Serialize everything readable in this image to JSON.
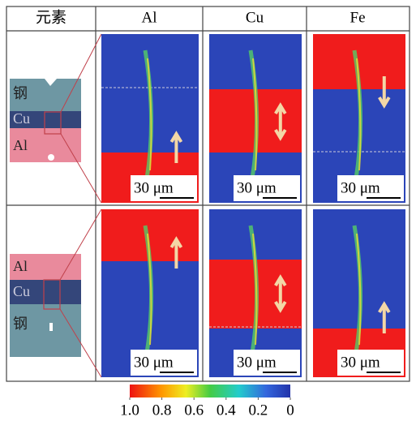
{
  "table": {
    "header": [
      "元素",
      "Al",
      "Cu",
      "Fe"
    ],
    "rows": [
      {
        "schematic_labels": [
          "钢",
          "Cu",
          "Al"
        ],
        "scale_bars": [
          "30 μm",
          "30 μm",
          "30 μm"
        ]
      },
      {
        "schematic_labels": [
          "Al",
          "Cu",
          "钢"
        ],
        "scale_bars": [
          "30 μm",
          "30 μm",
          "30 μm"
        ]
      }
    ]
  },
  "colorbar": {
    "lim": [
      1,
      0
    ],
    "ticks": [
      {
        "value": 1,
        "label": "1.0"
      },
      {
        "value": 0.8,
        "label": "0.8"
      },
      {
        "value": 0.6,
        "label": "0.6"
      },
      {
        "value": 0.4,
        "label": "0.4"
      },
      {
        "value": 0.2,
        "label": "0.2"
      },
      0
    ]
  }
}
